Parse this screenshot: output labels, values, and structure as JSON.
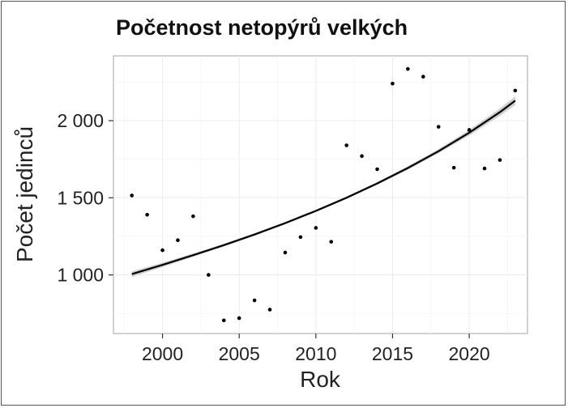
{
  "chart_data": {
    "type": "scatter",
    "title": "Početnost netopýrů velkých",
    "xlabel": "Rok",
    "ylabel": "Počet jedinců",
    "xlim": [
      1996.8,
      2023.8
    ],
    "ylim": [
      620,
      2420
    ],
    "grid": true,
    "x_ticks": [
      2000,
      2005,
      2010,
      2015,
      2020
    ],
    "x_tick_labels": [
      "2000",
      "2005",
      "2010",
      "2015",
      "2020"
    ],
    "y_ticks": [
      1000,
      1500,
      2000
    ],
    "y_tick_labels": [
      "1 000",
      "1 500",
      "2 000"
    ],
    "series": [
      {
        "x": [
          1998,
          1999,
          2000,
          2001,
          2002,
          2003,
          2004,
          2005,
          2006,
          2007,
          2008,
          2009,
          2010,
          2011,
          2012,
          2013,
          2014,
          2015,
          2016,
          2017,
          2018,
          2019,
          2020,
          2021,
          2022,
          2023
        ],
        "values": [
          1515,
          1390,
          1160,
          1225,
          1380,
          1000,
          705,
          720,
          835,
          775,
          1145,
          1245,
          1305,
          1215,
          1840,
          1770,
          1685,
          2240,
          2335,
          2285,
          1960,
          1695,
          1940,
          1690,
          1745,
          2195
        ]
      }
    ],
    "trend": {
      "type": "exponential fit with confidence band",
      "x": [
        1998,
        2000,
        2002,
        2004,
        2006,
        2008,
        2010,
        2012,
        2014,
        2016,
        2018,
        2020,
        2022,
        2023
      ],
      "values": [
        1005,
        1065,
        1128,
        1193,
        1262,
        1336,
        1415,
        1500,
        1593,
        1693,
        1802,
        1922,
        2055,
        2130
      ],
      "band_halfwidth": [
        18,
        14,
        11,
        9,
        8,
        8,
        8,
        8,
        9,
        11,
        14,
        18,
        24,
        28
      ]
    }
  }
}
